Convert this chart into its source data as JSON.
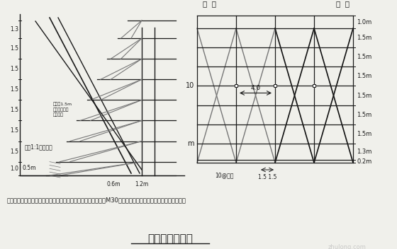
{
  "bg_color": "#f0f0eb",
  "line_color": "#1a1a1a",
  "gray_color": "#777777",
  "dark_color": "#111111",
  "title": "施工脚手架简图",
  "note": "注：人工对基础核动部分进行清理平整，清理后的回坑处，采用M30水泥砂浆填平，确保脚手架基础坚固稳定。",
  "right_labels": [
    "1.0m",
    "1.5m",
    "1.5m",
    "1.5m",
    "1.5m",
    "1.5m",
    "1.5m",
    "1.3m",
    "0.2m"
  ],
  "top_label_left": "马  道",
  "top_label_right": "马  道",
  "dim_10": "10",
  "dim_4": "4.0",
  "dim_m": "m",
  "dim_15_15": "1.5 1.5",
  "dim_10mm": "10@柱距",
  "font_size_title": 11,
  "watermark": "zhulong.com"
}
